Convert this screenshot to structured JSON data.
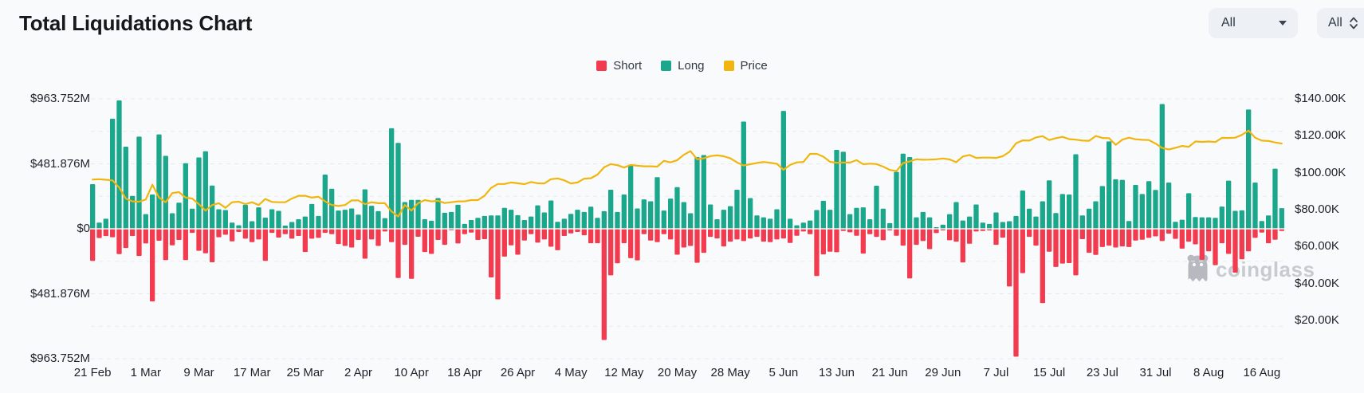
{
  "page": {
    "title": "Total Liquidations Chart"
  },
  "controls": {
    "pair_select": {
      "value": "All"
    },
    "range_select": {
      "value": "All"
    }
  },
  "legend": {
    "items": [
      {
        "label": "Short",
        "color": "#f23b4f"
      },
      {
        "label": "Long",
        "color": "#1aa78c"
      },
      {
        "label": "Price",
        "color": "#f1b60e"
      }
    ]
  },
  "watermark": {
    "text": "coinglass"
  },
  "chart_data": {
    "type": "bar",
    "subtype": "diverging daily bars with overlaid price line, dual y-axes",
    "title": "Total Liquidations Chart",
    "grid": "horizontal dashed",
    "legend_position": "top-center",
    "left_axis": {
      "tick_labels": [
        "$963.752M",
        "$481.876M",
        "$0",
        "$481.876M",
        "$963.752M"
      ],
      "max_abs_usd_m": 963.752
    },
    "right_axis": {
      "tick_labels": [
        "$140.00K",
        "$120.00K",
        "$100.00K",
        "$80.00K",
        "$60.00K",
        "$40.00K",
        "$20.00K"
      ],
      "min_usd_k": 20,
      "max_usd_k": 140
    },
    "start_date": "21 Feb",
    "end_date": "19 Aug",
    "tick_every_days": 8,
    "x_tick_labels": [
      "21 Feb",
      "1 Mar",
      "9 Mar",
      "17 Mar",
      "25 Mar",
      "2 Apr",
      "10 Apr",
      "18 Apr",
      "26 Apr",
      "4 May",
      "12 May",
      "20 May",
      "28 May",
      "5 Jun",
      "13 Jun",
      "21 Jun",
      "29 Jun",
      "7 Jul",
      "15 Jul",
      "23 Jul",
      "31 Jul",
      "8 Aug",
      "16 Aug"
    ],
    "series": [
      {
        "name": "Long",
        "axis": "left",
        "direction": "up",
        "unit": "USD millions",
        "color": "#1aa78c",
        "values": [
          331,
          46,
          75,
          817,
          952,
          609,
          244,
          684,
          109,
          254,
          700,
          541,
          115,
          194,
          486,
          149,
          529,
          575,
          321,
          145,
          139,
          46,
          26,
          178,
          56,
          159,
          83,
          145,
          133,
          24,
          50,
          71,
          91,
          184,
          95,
          402,
          297,
          135,
          141,
          151,
          105,
          293,
          171,
          131,
          79,
          746,
          637,
          198,
          214,
          214,
          71,
          60,
          228,
          119,
          125,
          178,
          36,
          65,
          81,
          95,
          99,
          99,
          155,
          141,
          101,
          65,
          91,
          174,
          121,
          210,
          52,
          75,
          111,
          141,
          125,
          164,
          81,
          131,
          290,
          125,
          254,
          476,
          151,
          218,
          204,
          383,
          135,
          224,
          309,
          198,
          115,
          532,
          547,
          180,
          71,
          141,
          168,
          290,
          795,
          228,
          99,
          85,
          75,
          145,
          874,
          75,
          26,
          46,
          61,
          139,
          208,
          141,
          585,
          571,
          109,
          155,
          159,
          71,
          319,
          149,
          42,
          422,
          557,
          532,
          85,
          125,
          85,
          12,
          30,
          109,
          198,
          61,
          91,
          180,
          46,
          36,
          121,
          50,
          56,
          95,
          284,
          149,
          91,
          204,
          359,
          117,
          258,
          254,
          553,
          99,
          149,
          204,
          317,
          648,
          367,
          363,
          58,
          325,
          258,
          353,
          288,
          925,
          343,
          52,
          67,
          264,
          87,
          85,
          85,
          81,
          165,
          357,
          133,
          137,
          885,
          343,
          58,
          99,
          446,
          153
        ]
      },
      {
        "name": "Short",
        "axis": "left",
        "direction": "down",
        "unit": "USD millions",
        "color": "#f23b4f",
        "values": [
          238,
          69,
          54,
          63,
          188,
          143,
          54,
          202,
          109,
          539,
          89,
          232,
          123,
          83,
          232,
          30,
          163,
          182,
          248,
          63,
          44,
          93,
          24,
          73,
          99,
          79,
          238,
          30,
          65,
          40,
          73,
          53,
          172,
          73,
          67,
          30,
          40,
          113,
          127,
          139,
          83,
          222,
          79,
          127,
          20,
          99,
          365,
          119,
          371,
          59,
          172,
          186,
          83,
          119,
          10,
          109,
          40,
          28,
          83,
          77,
          361,
          523,
          206,
          123,
          192,
          87,
          40,
          103,
          79,
          133,
          159,
          53,
          34,
          24,
          48,
          107,
          107,
          825,
          345,
          256,
          107,
          218,
          234,
          40,
          87,
          99,
          40,
          79,
          192,
          139,
          127,
          252,
          178,
          60,
          72,
          131,
          95,
          79,
          91,
          72,
          60,
          95,
          99,
          79,
          72,
          105,
          52,
          20,
          40,
          350,
          190,
          170,
          174,
          16,
          26,
          52,
          184,
          40,
          60,
          85,
          12,
          52,
          125,
          368,
          119,
          91,
          151,
          32,
          12,
          85,
          95,
          250,
          111,
          20,
          16,
          12,
          119,
          66,
          428,
          948,
          329,
          60,
          125,
          551,
          170,
          283,
          258,
          254,
          345,
          77,
          178,
          194,
          135,
          125,
          139,
          131,
          135,
          87,
          81,
          67,
          56,
          91,
          36,
          75,
          147,
          95,
          115,
          230,
          167,
          270,
          107,
          186,
          325,
          226,
          167,
          67,
          28,
          107,
          81,
          16
        ]
      },
      {
        "name": "Price",
        "axis": "right",
        "type": "line",
        "unit": "USD thousands",
        "color": "#f1b60e",
        "values": [
          96.3,
          96.5,
          96.2,
          95.8,
          92.0,
          86.0,
          84.5,
          84.3,
          85.5,
          93.5,
          86.5,
          84.0,
          89.0,
          89.5,
          86.5,
          86.0,
          83.0,
          79.5,
          82.5,
          83.5,
          81.0,
          84.0,
          84.3,
          83.0,
          84.0,
          82.5,
          85.8,
          84.2,
          84.0,
          84.0,
          86.0,
          87.5,
          87.5,
          86.5,
          87.0,
          84.5,
          82.5,
          82.0,
          82.5,
          85.0,
          85.0,
          83.0,
          84.0,
          83.5,
          83.5,
          79.0,
          76.3,
          82.5,
          79.5,
          83.5,
          85.2,
          84.5,
          84.8,
          83.6,
          84.0,
          84.5,
          84.5,
          85.2,
          85.2,
          87.5,
          91.8,
          93.9,
          93.9,
          94.7,
          94.3,
          93.8,
          95.0,
          94.3,
          94.2,
          96.5,
          96.9,
          95.9,
          94.2,
          94.7,
          96.8,
          97.0,
          99.0,
          102.9,
          104.7,
          104.1,
          102.8,
          104.2,
          103.8,
          103.5,
          103.5,
          103.3,
          106.4,
          105.6,
          106.8,
          109.7,
          111.7,
          107.3,
          107.8,
          109.0,
          109.4,
          108.9,
          107.8,
          105.6,
          103.9,
          104.6,
          105.3,
          105.8,
          105.4,
          104.8,
          101.6,
          104.2,
          105.6,
          105.8,
          110.2,
          110.2,
          108.7,
          105.9,
          105.4,
          105.5,
          105.5,
          106.8,
          104.6,
          104.9,
          104.7,
          103.3,
          101.5,
          100.9,
          105.2,
          106.1,
          107.3,
          107.0,
          107.1,
          107.3,
          107.7,
          107.2,
          105.7,
          108.8,
          109.6,
          108.0,
          108.2,
          108.2,
          108.0,
          108.9,
          111.3,
          115.9,
          117.5,
          117.4,
          119.1,
          119.8,
          117.7,
          118.7,
          119.4,
          118.2,
          117.9,
          117.4,
          117.3,
          119.9,
          118.8,
          118.7,
          115.1,
          117.9,
          119.0,
          118.1,
          117.8,
          117.7,
          115.8,
          113.4,
          112.6,
          113.5,
          114.5,
          114.0,
          116.9,
          116.7,
          116.9,
          116.6,
          118.9,
          118.8,
          119.0,
          120.5,
          122.8,
          119.0,
          117.4,
          117.2,
          116.4,
          115.8
        ]
      }
    ]
  }
}
